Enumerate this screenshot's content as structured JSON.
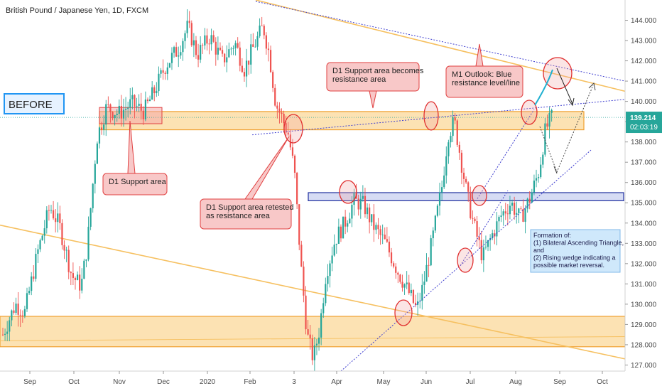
{
  "chart_data": {
    "type": "candlestick",
    "title": "British Pound / Japanese Yen, 1D, FXCM",
    "y_ticks": [
      "144.000",
      "143.000",
      "142.000",
      "141.000",
      "140.000",
      "139.000",
      "138.000",
      "137.000",
      "136.000",
      "135.000",
      "134.000",
      "133.000",
      "132.000",
      "131.000",
      "130.000",
      "129.000",
      "128.000",
      "127.000"
    ],
    "ylim": [
      126.7,
      145.0
    ],
    "x_ticks": [
      "Sep",
      "Oct",
      "Nov",
      "Dec",
      "2020",
      "Feb",
      "3",
      "Apr",
      "May",
      "Jun",
      "Jul",
      "Aug",
      "Sep",
      "Oct"
    ],
    "current_price": "139.214",
    "countdown": "02:03:19",
    "price_path": [
      {
        "d": 0,
        "p": 128.5
      },
      {
        "d": 8,
        "p": 130.0
      },
      {
        "d": 14,
        "p": 129.6
      },
      {
        "d": 22,
        "p": 132.5
      },
      {
        "d": 30,
        "p": 134.8
      },
      {
        "d": 36,
        "p": 133.9
      },
      {
        "d": 44,
        "p": 131.4
      },
      {
        "d": 50,
        "p": 130.9
      },
      {
        "d": 54,
        "p": 133.0
      },
      {
        "d": 60,
        "p": 138.2
      },
      {
        "d": 66,
        "p": 139.7
      },
      {
        "d": 74,
        "p": 139.4
      },
      {
        "d": 82,
        "p": 139.9
      },
      {
        "d": 90,
        "p": 139.5
      },
      {
        "d": 96,
        "p": 140.4
      },
      {
        "d": 104,
        "p": 141.8
      },
      {
        "d": 112,
        "p": 142.6
      },
      {
        "d": 118,
        "p": 143.7
      },
      {
        "d": 124,
        "p": 142.3
      },
      {
        "d": 132,
        "p": 143.2
      },
      {
        "d": 140,
        "p": 142.0
      },
      {
        "d": 148,
        "p": 142.9
      },
      {
        "d": 154,
        "p": 141.6
      },
      {
        "d": 160,
        "p": 142.7
      },
      {
        "d": 166,
        "p": 143.7
      },
      {
        "d": 170,
        "p": 142.3
      },
      {
        "d": 174,
        "p": 139.9
      },
      {
        "d": 178,
        "p": 139.2
      },
      {
        "d": 182,
        "p": 138.4
      },
      {
        "d": 186,
        "p": 136.5
      },
      {
        "d": 190,
        "p": 132.0
      },
      {
        "d": 194,
        "p": 128.5
      },
      {
        "d": 198,
        "p": 127.3
      },
      {
        "d": 202,
        "p": 128.8
      },
      {
        "d": 206,
        "p": 131.5
      },
      {
        "d": 212,
        "p": 133.2
      },
      {
        "d": 218,
        "p": 134.0
      },
      {
        "d": 224,
        "p": 135.1
      },
      {
        "d": 230,
        "p": 134.9
      },
      {
        "d": 236,
        "p": 133.9
      },
      {
        "d": 244,
        "p": 133.0
      },
      {
        "d": 252,
        "p": 131.6
      },
      {
        "d": 260,
        "p": 130.4
      },
      {
        "d": 264,
        "p": 129.7
      },
      {
        "d": 268,
        "p": 130.9
      },
      {
        "d": 274,
        "p": 133.2
      },
      {
        "d": 280,
        "p": 135.8
      },
      {
        "d": 284,
        "p": 138.4
      },
      {
        "d": 288,
        "p": 139.0
      },
      {
        "d": 292,
        "p": 137.2
      },
      {
        "d": 296,
        "p": 135.4
      },
      {
        "d": 300,
        "p": 134.0
      },
      {
        "d": 306,
        "p": 132.3
      },
      {
        "d": 312,
        "p": 133.4
      },
      {
        "d": 318,
        "p": 134.4
      },
      {
        "d": 324,
        "p": 135.0
      },
      {
        "d": 330,
        "p": 134.2
      },
      {
        "d": 336,
        "p": 135.2
      },
      {
        "d": 342,
        "p": 136.6
      },
      {
        "d": 346,
        "p": 138.6
      },
      {
        "d": 350,
        "p": 139.2
      }
    ],
    "zones": [
      {
        "name": "yellow-upper",
        "from": 138.6,
        "to": 139.5,
        "fill": "#fbd89a",
        "stroke": "#f0a030"
      },
      {
        "name": "yellow-lower",
        "from": 127.9,
        "to": 129.4,
        "fill": "#fbd89a",
        "stroke": "#f0a030"
      },
      {
        "name": "blue-zone",
        "from": 135.1,
        "to": 135.5,
        "fill": "#c8d0f0",
        "stroke": "#2030a0"
      }
    ],
    "annotations": {
      "before": "BEFORE",
      "support": "D1 Support area",
      "retested_line1": "D1 Support area retested",
      "retested_line2": "as resistance area",
      "becomes_line1": "D1 Support area becomes",
      "becomes_line2": "resistance area",
      "outlook_line1": "M1 Outlook: Blue",
      "outlook_line2": "resistance level/line",
      "formation_lines": [
        "Formation of:",
        "(1) Bilateral Ascending Triangle,",
        "and",
        "(2) Rising wedge indicating a",
        "possible market reversal."
      ]
    },
    "colors": {
      "up": "#26a69a",
      "down": "#ef5350",
      "accent": "#2196f3",
      "callout": "#f8c8c8",
      "callout_border": "#e04040",
      "note": "#cfe8fb"
    }
  }
}
